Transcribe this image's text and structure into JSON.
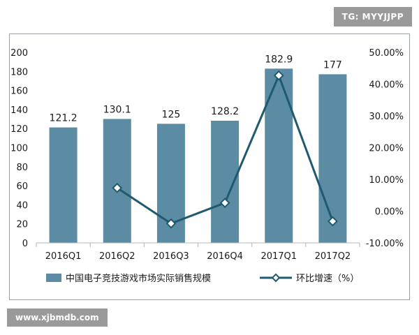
{
  "watermarks": {
    "top_right": "TG: MYYJJPP",
    "bottom_left": "www.xjbmdb.com"
  },
  "chart_data": {
    "type": "bar",
    "categories": [
      "2016Q1",
      "2016Q2",
      "2016Q3",
      "2016Q4",
      "2017Q1",
      "2017Q2"
    ],
    "series": [
      {
        "name": "中国电子竞技游戏市场实际销售规模",
        "type": "bar",
        "axis": "left",
        "values": [
          121.2,
          130.1,
          125,
          128.2,
          182.9,
          177
        ],
        "data_labels": [
          "121.2",
          "130.1",
          "125",
          "128.2",
          "182.9",
          "177"
        ],
        "color": "#5b8ca4"
      },
      {
        "name": "环比增速（%）",
        "type": "line",
        "axis": "right",
        "values": [
          null,
          7.3,
          -3.9,
          2.6,
          42.7,
          -3.2
        ],
        "color": "#1f5a6e",
        "marker": "diamond"
      }
    ],
    "y_left": {
      "min": 0,
      "max": 200,
      "ticks": [
        "0",
        "20",
        "40",
        "60",
        "80",
        "100",
        "120",
        "140",
        "160",
        "180",
        "200"
      ]
    },
    "y_right": {
      "min": -10,
      "max": 50,
      "ticks": [
        "-10.00%",
        "0.00%",
        "10.00%",
        "20.00%",
        "30.00%",
        "40.00%",
        "50.00%"
      ]
    },
    "grid": false,
    "legend_position": "bottom"
  }
}
